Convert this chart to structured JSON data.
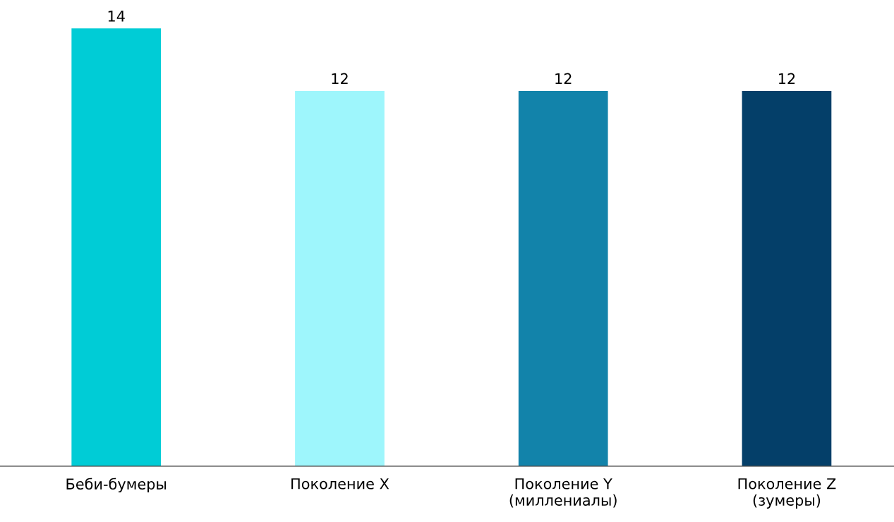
{
  "chart_data": {
    "type": "bar",
    "categories": [
      "Беби-бумеры",
      "Поколение X",
      "Поколение Y\n(миллениалы)",
      "Поколение Z\n(зумеры)"
    ],
    "values": [
      14,
      12,
      12,
      12
    ],
    "colors": [
      "#00ccd6",
      "#9ef6fc",
      "#1283aa",
      "#043f69"
    ],
    "data_labels": true,
    "grid": false,
    "legend": false
  }
}
